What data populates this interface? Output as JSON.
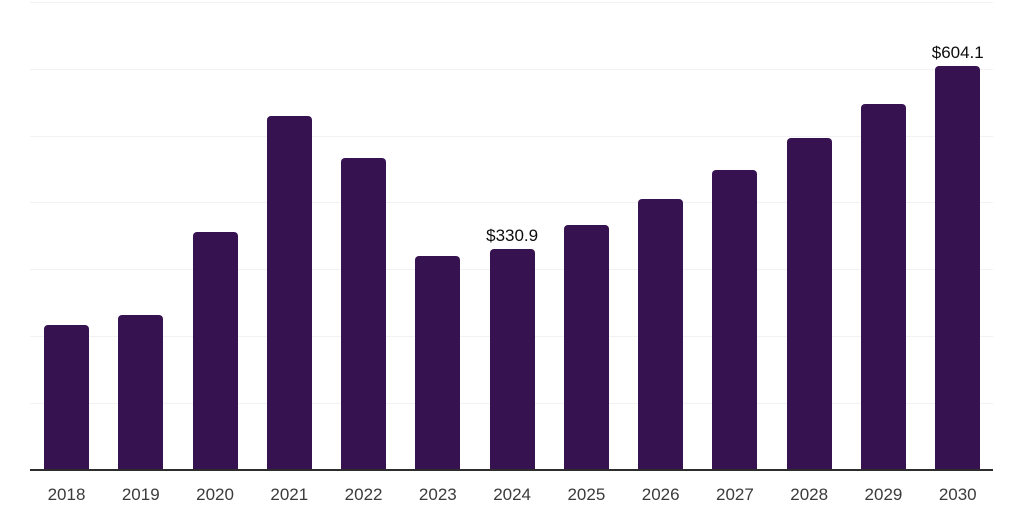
{
  "chart_data": {
    "type": "bar",
    "title": "",
    "xlabel": "",
    "ylabel": "",
    "categories": [
      "2018",
      "2019",
      "2020",
      "2021",
      "2022",
      "2023",
      "2024",
      "2025",
      "2026",
      "2027",
      "2028",
      "2029",
      "2030"
    ],
    "values": [
      216,
      231,
      356,
      529,
      467,
      320,
      330.9,
      366,
      405,
      449,
      496,
      548,
      604.1
    ],
    "data_labels": [
      "",
      "",
      "",
      "",
      "",
      "",
      "$330.9",
      "",
      "",
      "",
      "",
      "",
      "$604.1"
    ],
    "ylim": [
      0,
      700
    ],
    "y_grid_step": 100,
    "grid": "horizontal",
    "y_tick_labels_visible": false,
    "legend": "none",
    "colors": {
      "bar": "#361250",
      "axis_line": "#2d2d2d",
      "gridline": "#f2f2f5",
      "tick_label": "#3b3b3b",
      "data_label": "#0d0d0d",
      "background": "#ffffff"
    }
  }
}
